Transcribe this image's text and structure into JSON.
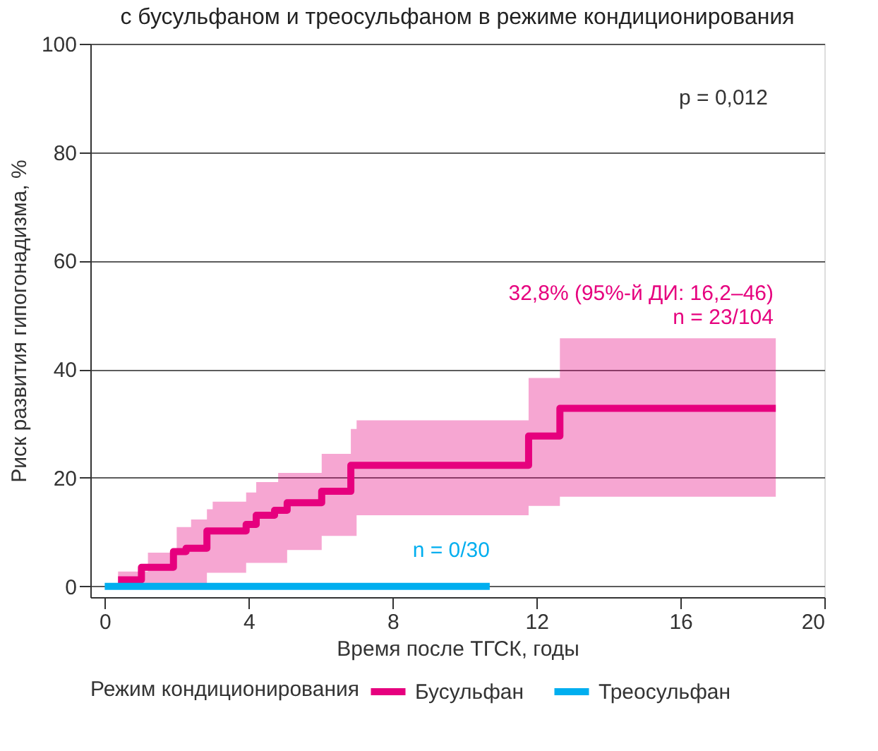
{
  "chart_data": {
    "type": "step",
    "title": "с бусульфаном и треосульфаном в режиме кондиционирования",
    "xlabel": "Время после ТГСК, годы",
    "ylabel": "Риск развития гипогонадизма, %",
    "legend_title": "Режим кондиционирования",
    "xlim": [
      -0.4,
      20
    ],
    "xticks": [
      0,
      4,
      8,
      12,
      16,
      20
    ],
    "ylim": [
      -2,
      100
    ],
    "yticks": [
      0,
      20,
      40,
      60,
      80,
      100
    ],
    "grid": "y",
    "legend": "bottom",
    "line_style": "solid",
    "marker": "none",
    "series": [
      {
        "name": "Бусульфан",
        "color": "#e6007e",
        "x": [
          0.37,
          1.02,
          1.2,
          1.91,
          2.0,
          2.26,
          2.4,
          2.84,
          3.0,
          3.93,
          4.21,
          4.72,
          4.82,
          5.07,
          6.03,
          6.84,
          7.0,
          11.78,
          12.65,
          18.65
        ],
        "values": [
          1.2,
          3.5,
          3.5,
          6.4,
          6.4,
          7.0,
          7.0,
          10.2,
          10.2,
          11.4,
          13.1,
          14.0,
          14.0,
          15.4,
          17.5,
          22.3,
          22.3,
          27.7,
          32.8,
          32.8
        ],
        "lower": [
          0,
          0,
          0,
          0,
          0,
          0,
          0,
          2.5,
          2.5,
          4.3,
          4.3,
          4.3,
          4.3,
          6.7,
          9.3,
          9.3,
          13.1,
          14.8,
          16.5,
          16.5
        ],
        "upper": [
          2.7,
          2.7,
          6.2,
          6.2,
          10.9,
          10.9,
          12.3,
          14.2,
          15.6,
          17.3,
          19.2,
          19.2,
          20.9,
          20.9,
          24.4,
          29.0,
          30.6,
          38.4,
          45.7,
          45.7
        ]
      },
      {
        "name": "Треосульфан",
        "color": "#00aeef",
        "x": [
          0,
          10.7
        ],
        "values": [
          0,
          0
        ]
      }
    ],
    "annotations": [
      "p = 0,012",
      "32,8% (95%-й ДИ: 16,2–46)",
      "n = 23/104",
      "n = 0/30"
    ]
  }
}
